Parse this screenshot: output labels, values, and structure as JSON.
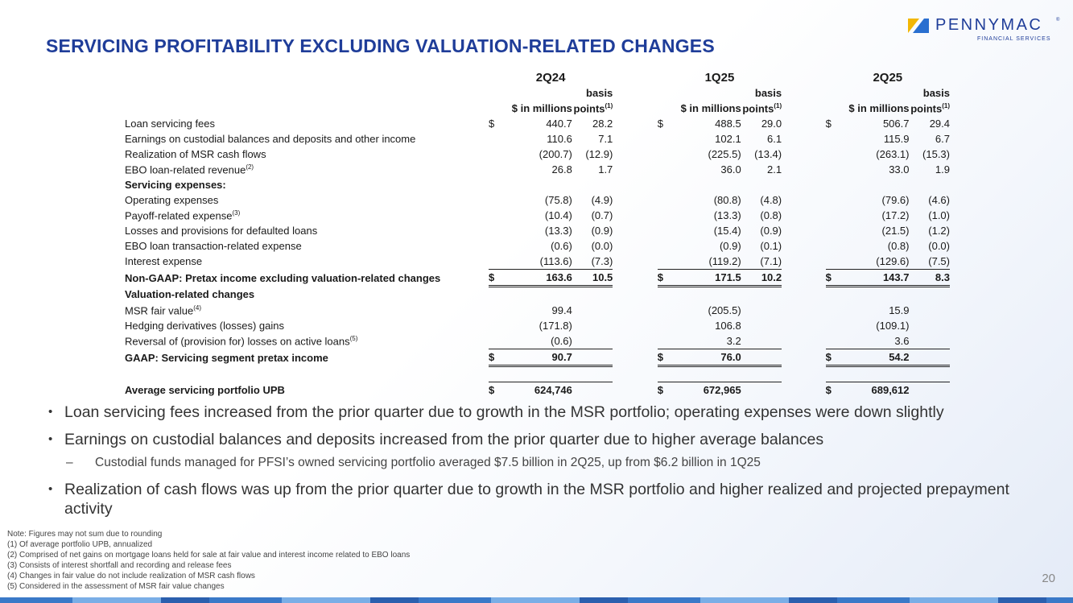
{
  "title": "SERVICING PROFITABILITY EXCLUDING VALUATION-RELATED CHANGES",
  "logo": {
    "name": "PENNYMAC",
    "sub": "FINANCIAL SERVICES",
    "reg": "®"
  },
  "table": {
    "quarters": [
      "2Q24",
      "1Q25",
      "2Q25"
    ],
    "col_basis": "basis",
    "col_millions": "$ in millions",
    "col_points": "points",
    "sup1": "(1)",
    "rows": [
      {
        "label": "Loan servicing fees",
        "sup": "",
        "v": [
          "$",
          "440.7",
          "28.2",
          "$",
          "488.5",
          "29.0",
          "$",
          "506.7",
          "29.4"
        ]
      },
      {
        "label": "Earnings on custodial balances and deposits and other income",
        "sup": "",
        "v": [
          "",
          "110.6",
          "7.1",
          "",
          "102.1",
          "6.1",
          "",
          "115.9",
          "6.7"
        ]
      },
      {
        "label": "Realization of MSR cash flows",
        "sup": "",
        "v": [
          "",
          "(200.7)",
          "(12.9)",
          "",
          "(225.5)",
          "(13.4)",
          "",
          "(263.1)",
          "(15.3)"
        ]
      },
      {
        "label": "EBO loan-related revenue",
        "sup": "(2)",
        "v": [
          "",
          "26.8",
          "1.7",
          "",
          "36.0",
          "2.1",
          "",
          "33.0",
          "1.9"
        ]
      },
      {
        "label": "Servicing expenses:"
      },
      {
        "label": "Operating expenses",
        "sup": "",
        "v": [
          "",
          "(75.8)",
          "(4.9)",
          "",
          "(80.8)",
          "(4.8)",
          "",
          "(79.6)",
          "(4.6)"
        ]
      },
      {
        "label": "Payoff-related expense",
        "sup": "(3)",
        "v": [
          "",
          "(10.4)",
          "(0.7)",
          "",
          "(13.3)",
          "(0.8)",
          "",
          "(17.2)",
          "(1.0)"
        ]
      },
      {
        "label": "Losses and provisions for defaulted loans",
        "sup": "",
        "v": [
          "",
          "(13.3)",
          "(0.9)",
          "",
          "(15.4)",
          "(0.9)",
          "",
          "(21.5)",
          "(1.2)"
        ]
      },
      {
        "label": "EBO loan transaction-related expense",
        "sup": "",
        "v": [
          "",
          "(0.6)",
          "(0.0)",
          "",
          "(0.9)",
          "(0.1)",
          "",
          "(0.8)",
          "(0.0)"
        ]
      },
      {
        "label": "Interest expense",
        "sup": "",
        "v": [
          "",
          "(113.6)",
          "(7.3)",
          "",
          "(119.2)",
          "(7.1)",
          "",
          "(129.6)",
          "(7.5)"
        ]
      },
      {
        "label": "Non-GAAP: Pretax income excluding valuation-related changes",
        "sup": "",
        "v": [
          "$",
          "163.6",
          "10.5",
          "$",
          "171.5",
          "10.2",
          "$",
          "143.7",
          "8.3"
        ]
      },
      {
        "label": "Valuation-related changes"
      },
      {
        "label": "MSR fair value",
        "sup": "(4)",
        "v": [
          "",
          "99.4",
          "",
          "",
          "(205.5)",
          "",
          "",
          "15.9",
          ""
        ]
      },
      {
        "label": "Hedging derivatives (losses) gains",
        "sup": "",
        "v": [
          "",
          "(171.8)",
          "",
          "",
          "106.8",
          "",
          "",
          "(109.1)",
          ""
        ]
      },
      {
        "label": "Reversal of (provision for) losses on active loans",
        "sup": "(5)",
        "v": [
          "",
          "(0.6)",
          "",
          "",
          "3.2",
          "",
          "",
          "3.6",
          ""
        ]
      },
      {
        "label": "GAAP: Servicing segment pretax income",
        "sup": "",
        "v": [
          "$",
          "90.7",
          "",
          "$",
          "76.0",
          "",
          "$",
          "54.2",
          ""
        ]
      },
      {
        "label": "Average servicing portfolio UPB",
        "sup": "",
        "v": [
          "$",
          "624,746",
          "",
          "$",
          "672,965",
          "",
          "$",
          "689,612",
          ""
        ]
      }
    ]
  },
  "bullets": [
    "Loan servicing fees increased from the prior quarter due to growth in the MSR portfolio; operating expenses were down slightly",
    "Earnings on custodial balances and deposits increased from the prior quarter due to higher average balances",
    "Realization of cash flows was up from the prior quarter due to growth in the MSR portfolio and higher realized and projected prepayment activity"
  ],
  "sub_bullet": "Custodial funds managed for PFSI’s owned servicing portfolio averaged $7.5 billion in 2Q25, up from $6.2 billion in 1Q25",
  "notes": [
    "Note: Figures may not sum due to rounding",
    "(1) Of average portfolio UPB, annualized",
    "(2) Comprised of net gains on mortgage loans held for sale at fair value and interest income related to EBO loans",
    "(3) Consists of interest shortfall and recording and release fees",
    "(4) Changes in fair value do not include realization of MSR cash flows",
    "(5) Considered in the assessment of MSR fair value changes"
  ],
  "page_number": "20",
  "colors": {
    "title": "#1f3d99",
    "logo_yellow": "#f2b705",
    "logo_blue": "#2a6fd0"
  }
}
